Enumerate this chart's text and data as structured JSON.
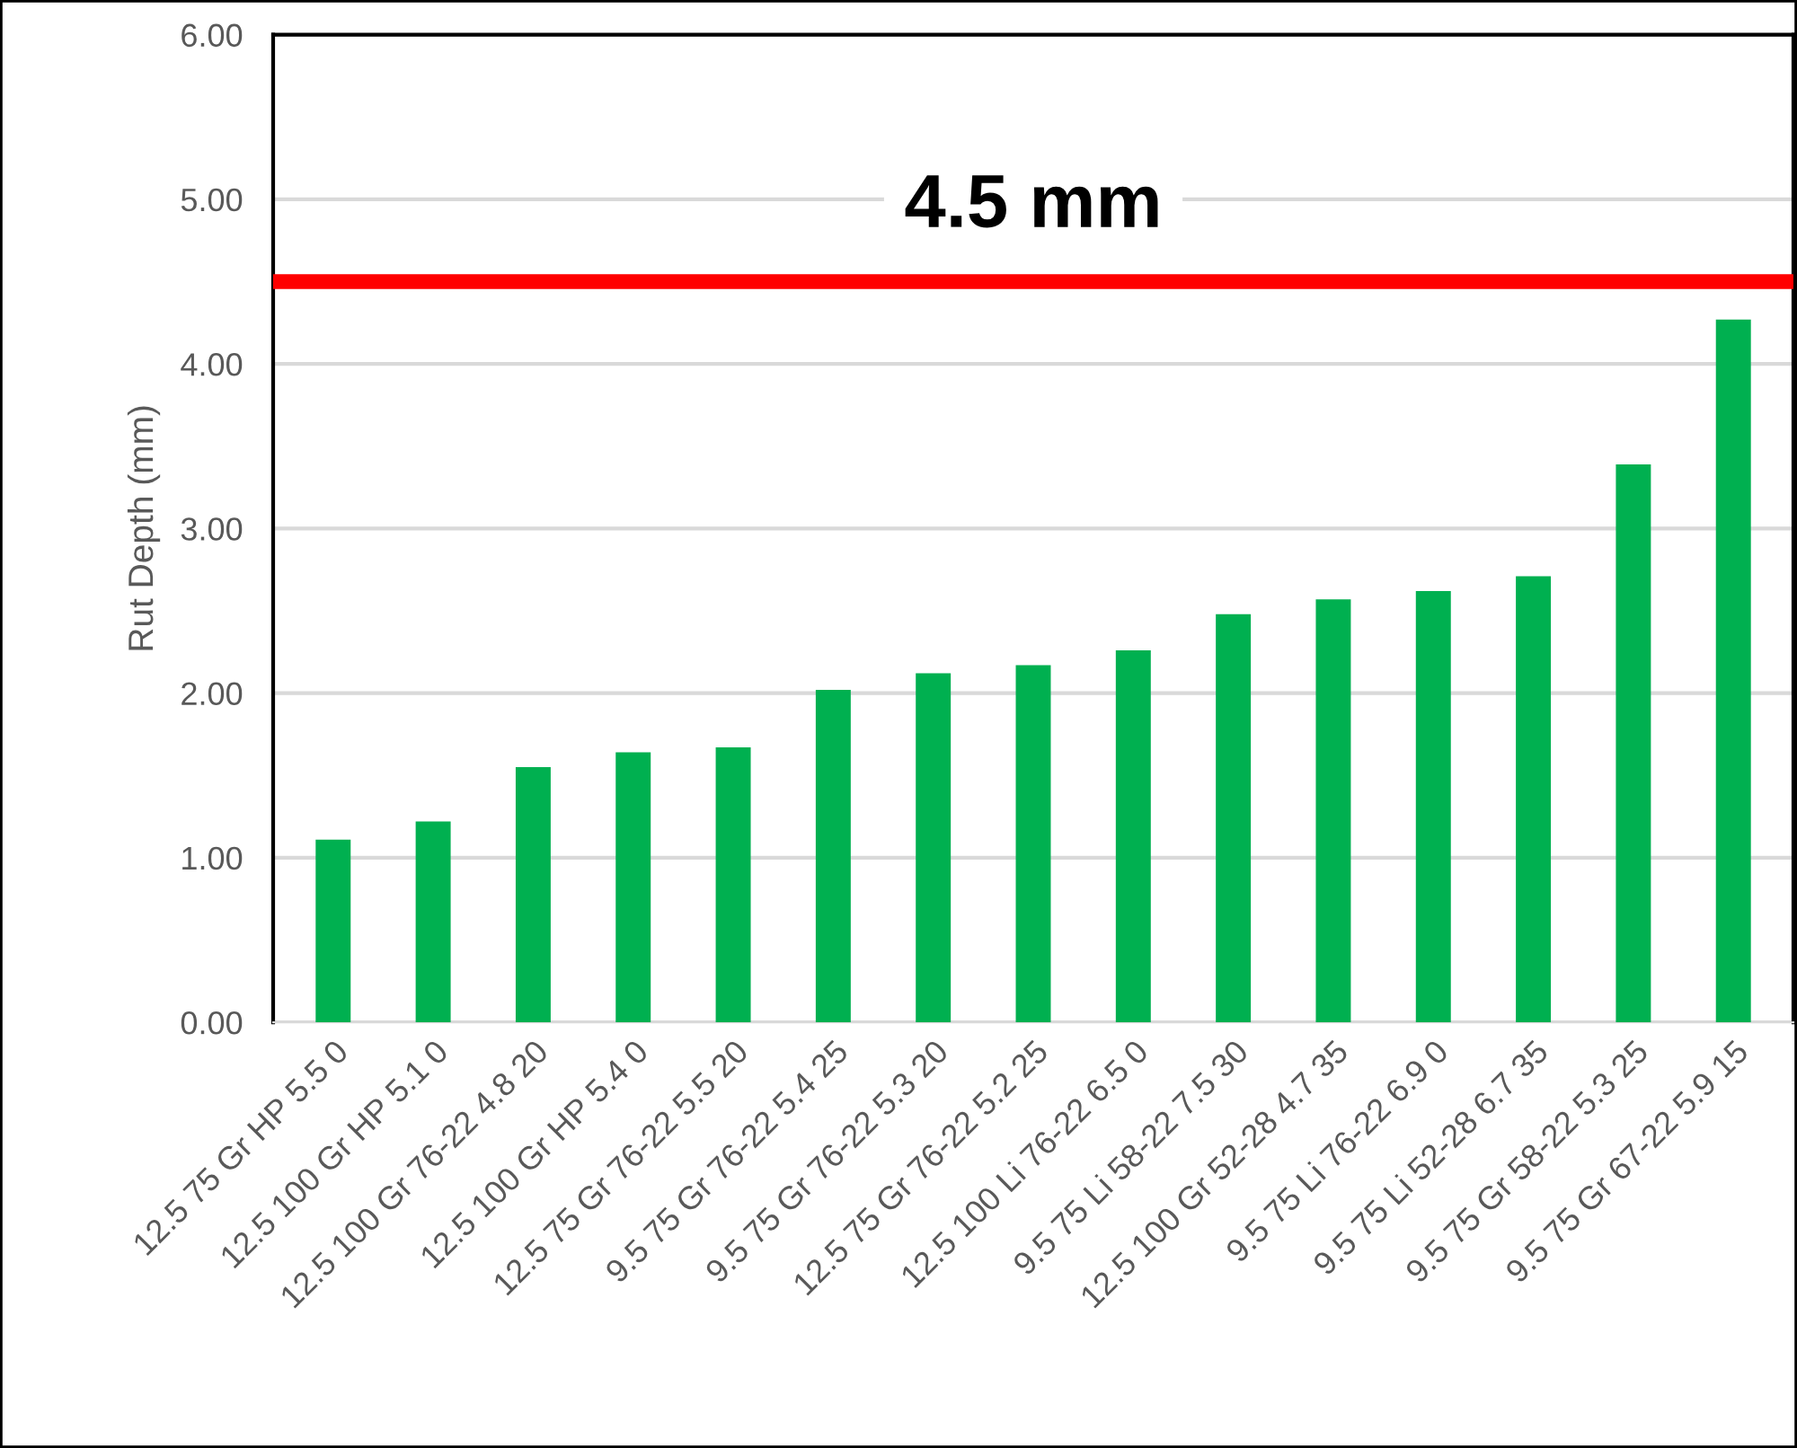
{
  "chart_data": {
    "type": "bar",
    "ylabel": "Rut Depth (mm)",
    "categories": [
      "12.5 75 Gr HP 5.5 0",
      "12.5 100 Gr HP 5.1 0",
      "12.5 100 Gr 76-22 4.8 20",
      "12.5 100 Gr HP 5.4 0",
      "12.5 75 Gr 76-22 5.5 20",
      "9.5 75 Gr 76-22 5.4 25",
      "9.5 75 Gr 76-22 5.3 20",
      "12.5 75 Gr 76-22 5.2 25",
      "12.5 100 Li 76-22 6.5 0",
      "9.5 75 Li 58-22 7.5 30",
      "12.5 100 Gr 52-28 4.7 35",
      "9.5 75 Li 76-22 6.9 0",
      "9.5 75 Li 52-28 6.7 35",
      "9.5 75 Gr 58-22 5.3 25",
      "9.5 75 Gr 67-22 5.9 15"
    ],
    "values": [
      1.11,
      1.22,
      1.55,
      1.64,
      1.67,
      2.02,
      2.12,
      2.17,
      2.26,
      2.48,
      2.57,
      2.62,
      2.71,
      3.39,
      4.27
    ],
    "color": "#00b050",
    "ylim": [
      0,
      6
    ],
    "yticks": [
      {
        "value": 0,
        "label": "0.00"
      },
      {
        "value": 1,
        "label": "1.00"
      },
      {
        "value": 2,
        "label": "2.00"
      },
      {
        "value": 3,
        "label": "3.00"
      },
      {
        "value": 4,
        "label": "4.00"
      },
      {
        "value": 5,
        "label": "5.00"
      },
      {
        "value": 6,
        "label": "6.00"
      }
    ],
    "grid": "y",
    "ref_lines": [
      {
        "axis": "y",
        "value": 4.5,
        "label": "4.5 mm",
        "color": "#ff0000"
      }
    ]
  }
}
